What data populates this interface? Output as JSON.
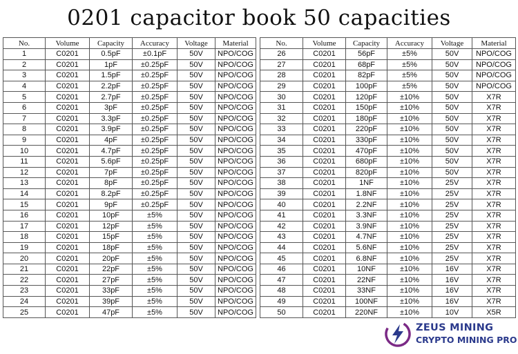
{
  "title": "0201 capacitor book 50 capacities",
  "headers": [
    "No.",
    "Volume",
    "Capacity",
    "Accuracy",
    "Voltage",
    "Material"
  ],
  "left_rows": [
    [
      "1",
      "C0201",
      "0.5pF",
      "±0.1pF",
      "50V",
      "NPO/COG"
    ],
    [
      "2",
      "C0201",
      "1pF",
      "±0.25pF",
      "50V",
      "NPO/COG"
    ],
    [
      "3",
      "C0201",
      "1.5pF",
      "±0.25pF",
      "50V",
      "NPO/COG"
    ],
    [
      "4",
      "C0201",
      "2.2pF",
      "±0.25pF",
      "50V",
      "NPO/COG"
    ],
    [
      "5",
      "C0201",
      "2.7pF",
      "±0.25pF",
      "50V",
      "NPO/COG"
    ],
    [
      "6",
      "C0201",
      "3pF",
      "±0.25pF",
      "50V",
      "NPO/COG"
    ],
    [
      "7",
      "C0201",
      "3.3pF",
      "±0.25pF",
      "50V",
      "NPO/COG"
    ],
    [
      "8",
      "C0201",
      "3.9pF",
      "±0.25pF",
      "50V",
      "NPO/COG"
    ],
    [
      "9",
      "C0201",
      "4pF",
      "±0.25pF",
      "50V",
      "NPO/COG"
    ],
    [
      "10",
      "C0201",
      "4.7pF",
      "±0.25pF",
      "50V",
      "NPO/COG"
    ],
    [
      "11",
      "C0201",
      "5.6pF",
      "±0.25pF",
      "50V",
      "NPO/COG"
    ],
    [
      "12",
      "C0201",
      "7pF",
      "±0.25pF",
      "50V",
      "NPO/COG"
    ],
    [
      "13",
      "C0201",
      "8pF",
      "±0.25pF",
      "50V",
      "NPO/COG"
    ],
    [
      "14",
      "C0201",
      "8.2pF",
      "±0.25pF",
      "50V",
      "NPO/COG"
    ],
    [
      "15",
      "C0201",
      "9pF",
      "±0.25pF",
      "50V",
      "NPO/COG"
    ],
    [
      "16",
      "C0201",
      "10pF",
      "±5%",
      "50V",
      "NPO/COG"
    ],
    [
      "17",
      "C0201",
      "12pF",
      "±5%",
      "50V",
      "NPO/COG"
    ],
    [
      "18",
      "C0201",
      "15pF",
      "±5%",
      "50V",
      "NPO/COG"
    ],
    [
      "19",
      "C0201",
      "18pF",
      "±5%",
      "50V",
      "NPO/COG"
    ],
    [
      "20",
      "C0201",
      "20pF",
      "±5%",
      "50V",
      "NPO/COG"
    ],
    [
      "21",
      "C0201",
      "22pF",
      "±5%",
      "50V",
      "NPO/COG"
    ],
    [
      "22",
      "C0201",
      "27pF",
      "±5%",
      "50V",
      "NPO/COG"
    ],
    [
      "23",
      "C0201",
      "33pF",
      "±5%",
      "50V",
      "NPO/COG"
    ],
    [
      "24",
      "C0201",
      "39pF",
      "±5%",
      "50V",
      "NPO/COG"
    ],
    [
      "25",
      "C0201",
      "47pF",
      "±5%",
      "50V",
      "NPO/COG"
    ]
  ],
  "right_rows": [
    [
      "26",
      "C0201",
      "56pF",
      "±5%",
      "50V",
      "NPO/COG"
    ],
    [
      "27",
      "C0201",
      "68pF",
      "±5%",
      "50V",
      "NPO/COG"
    ],
    [
      "28",
      "C0201",
      "82pF",
      "±5%",
      "50V",
      "NPO/COG"
    ],
    [
      "29",
      "C0201",
      "100pF",
      "±5%",
      "50V",
      "NPO/COG"
    ],
    [
      "30",
      "C0201",
      "120pF",
      "±10%",
      "50V",
      "X7R"
    ],
    [
      "31",
      "C0201",
      "150pF",
      "±10%",
      "50V",
      "X7R"
    ],
    [
      "32",
      "C0201",
      "180pF",
      "±10%",
      "50V",
      "X7R"
    ],
    [
      "33",
      "C0201",
      "220pF",
      "±10%",
      "50V",
      "X7R"
    ],
    [
      "34",
      "C0201",
      "330pF",
      "±10%",
      "50V",
      "X7R"
    ],
    [
      "35",
      "C0201",
      "470pF",
      "±10%",
      "50V",
      "X7R"
    ],
    [
      "36",
      "C0201",
      "680pF",
      "±10%",
      "50V",
      "X7R"
    ],
    [
      "37",
      "C0201",
      "820pF",
      "±10%",
      "50V",
      "X7R"
    ],
    [
      "38",
      "C0201",
      "1NF",
      "±10%",
      "25V",
      "X7R"
    ],
    [
      "39",
      "C0201",
      "1.8NF",
      "±10%",
      "25V",
      "X7R"
    ],
    [
      "40",
      "C0201",
      "2.2NF",
      "±10%",
      "25V",
      "X7R"
    ],
    [
      "41",
      "C0201",
      "3.3NF",
      "±10%",
      "25V",
      "X7R"
    ],
    [
      "42",
      "C0201",
      "3.9NF",
      "±10%",
      "25V",
      "X7R"
    ],
    [
      "43",
      "C0201",
      "4.7NF",
      "±10%",
      "25V",
      "X7R"
    ],
    [
      "44",
      "C0201",
      "5.6NF",
      "±10%",
      "25V",
      "X7R"
    ],
    [
      "45",
      "C0201",
      "6.8NF",
      "±10%",
      "25V",
      "X7R"
    ],
    [
      "46",
      "C0201",
      "10NF",
      "±10%",
      "16V",
      "X7R"
    ],
    [
      "47",
      "C0201",
      "22NF",
      "±10%",
      "16V",
      "X7R"
    ],
    [
      "48",
      "C0201",
      "33NF",
      "±10%",
      "16V",
      "X7R"
    ],
    [
      "49",
      "C0201",
      "100NF",
      "±10%",
      "16V",
      "X7R"
    ],
    [
      "50",
      "C0201",
      "220NF",
      "±10%",
      "10V",
      "X5R"
    ]
  ],
  "logo": {
    "line1": "ZEUS MINING",
    "line2": "CRYPTO MINING PRO",
    "icon": "lightning-bolt-icon",
    "color_primary": "#2b3a8c",
    "color_accent": "#7b2a86"
  }
}
